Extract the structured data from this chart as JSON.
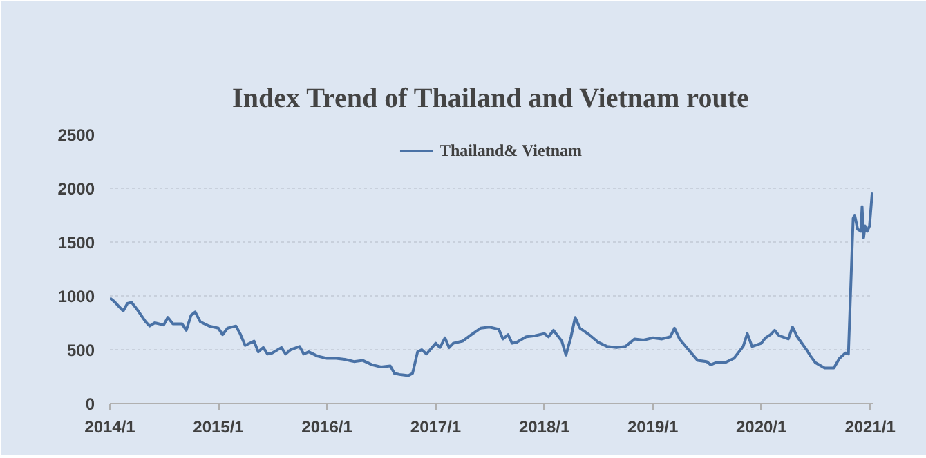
{
  "chart_data": {
    "type": "line",
    "title": "Index Trend of Thailand and Vietnam route",
    "x": [
      "2014-01-01",
      "2014-01-15",
      "2014-02-01",
      "2014-02-15",
      "2014-03-01",
      "2014-03-15",
      "2014-04-01",
      "2014-05-01",
      "2014-05-15",
      "2014-06-01",
      "2014-07-01",
      "2014-07-15",
      "2014-08-01",
      "2014-09-01",
      "2014-09-15",
      "2014-10-01",
      "2014-10-15",
      "2014-11-01",
      "2014-12-01",
      "2015-01-01",
      "2015-01-15",
      "2015-02-01",
      "2015-03-01",
      "2015-03-15",
      "2015-04-01",
      "2015-05-01",
      "2015-05-15",
      "2015-06-01",
      "2015-06-15",
      "2015-07-01",
      "2015-08-01",
      "2015-08-15",
      "2015-09-01",
      "2015-10-01",
      "2015-10-15",
      "2015-11-01",
      "2015-12-01",
      "2016-01-01",
      "2016-02-01",
      "2016-03-01",
      "2016-04-01",
      "2016-05-01",
      "2016-06-01",
      "2016-07-01",
      "2016-08-01",
      "2016-08-15",
      "2016-09-01",
      "2016-10-01",
      "2016-10-15",
      "2016-11-01",
      "2016-11-15",
      "2016-12-01",
      "2017-01-01",
      "2017-01-15",
      "2017-02-01",
      "2017-02-15",
      "2017-03-01",
      "2017-04-01",
      "2017-05-01",
      "2017-06-01",
      "2017-07-01",
      "2017-08-01",
      "2017-08-15",
      "2017-09-01",
      "2017-09-15",
      "2017-10-01",
      "2017-11-01",
      "2017-12-01",
      "2018-01-01",
      "2018-01-15",
      "2018-02-01",
      "2018-02-15",
      "2018-03-01",
      "2018-03-15",
      "2018-04-01",
      "2018-04-15",
      "2018-05-01",
      "2018-06-01",
      "2018-07-01",
      "2018-08-01",
      "2018-09-01",
      "2018-10-01",
      "2018-11-01",
      "2018-12-01",
      "2019-01-01",
      "2019-02-01",
      "2019-03-01",
      "2019-03-15",
      "2019-04-01",
      "2019-05-01",
      "2019-06-01",
      "2019-07-01",
      "2019-07-15",
      "2019-08-01",
      "2019-09-01",
      "2019-10-01",
      "2019-11-01",
      "2019-11-15",
      "2019-12-01",
      "2020-01-01",
      "2020-01-15",
      "2020-02-01",
      "2020-02-15",
      "2020-03-01",
      "2020-04-01",
      "2020-04-15",
      "2020-05-01",
      "2020-06-01",
      "2020-06-15",
      "2020-07-01",
      "2020-08-01",
      "2020-09-01",
      "2020-09-20",
      "2020-10-10",
      "2020-10-20",
      "2020-11-05",
      "2020-11-10",
      "2020-11-20",
      "2020-12-01",
      "2020-12-05",
      "2020-12-10",
      "2020-12-15",
      "2020-12-22",
      "2020-12-30",
      "2021-01-08"
    ],
    "series": [
      {
        "name": "Thailand& Vietnam",
        "color": "#4a72a6",
        "values": [
          980,
          950,
          900,
          860,
          930,
          940,
          880,
          760,
          720,
          750,
          730,
          800,
          740,
          740,
          680,
          820,
          850,
          760,
          720,
          700,
          640,
          700,
          720,
          650,
          540,
          580,
          480,
          520,
          460,
          470,
          520,
          460,
          500,
          530,
          460,
          480,
          440,
          420,
          420,
          410,
          390,
          400,
          360,
          340,
          350,
          280,
          270,
          260,
          280,
          480,
          500,
          460,
          560,
          520,
          610,
          520,
          560,
          580,
          640,
          700,
          710,
          690,
          600,
          640,
          560,
          570,
          620,
          630,
          650,
          620,
          680,
          630,
          580,
          450,
          620,
          800,
          700,
          640,
          570,
          530,
          520,
          530,
          600,
          590,
          610,
          600,
          620,
          700,
          600,
          500,
          400,
          390,
          360,
          380,
          380,
          420,
          530,
          650,
          530,
          560,
          610,
          640,
          680,
          630,
          600,
          710,
          620,
          500,
          440,
          380,
          330,
          330,
          420,
          470,
          460,
          1720,
          1750,
          1620,
          1600,
          1830,
          1540,
          1650,
          1600,
          1650,
          1960
        ]
      }
    ],
    "xlim": [
      "2014-01-01",
      "2021-01-10"
    ],
    "xticks": [
      {
        "value": "2014-01-01",
        "label": "2014/1"
      },
      {
        "value": "2015-01-01",
        "label": "2015/1"
      },
      {
        "value": "2016-01-01",
        "label": "2016/1"
      },
      {
        "value": "2017-01-01",
        "label": "2017/1"
      },
      {
        "value": "2018-01-01",
        "label": "2018/1"
      },
      {
        "value": "2019-01-01",
        "label": "2019/1"
      },
      {
        "value": "2020-01-01",
        "label": "2020/1"
      },
      {
        "value": "2021-01-01",
        "label": "2021/1"
      }
    ],
    "ylim": [
      0,
      2500
    ],
    "yticks": [
      0,
      500,
      1000,
      1500,
      2000,
      2500
    ],
    "grid": "y",
    "legend": "top"
  }
}
